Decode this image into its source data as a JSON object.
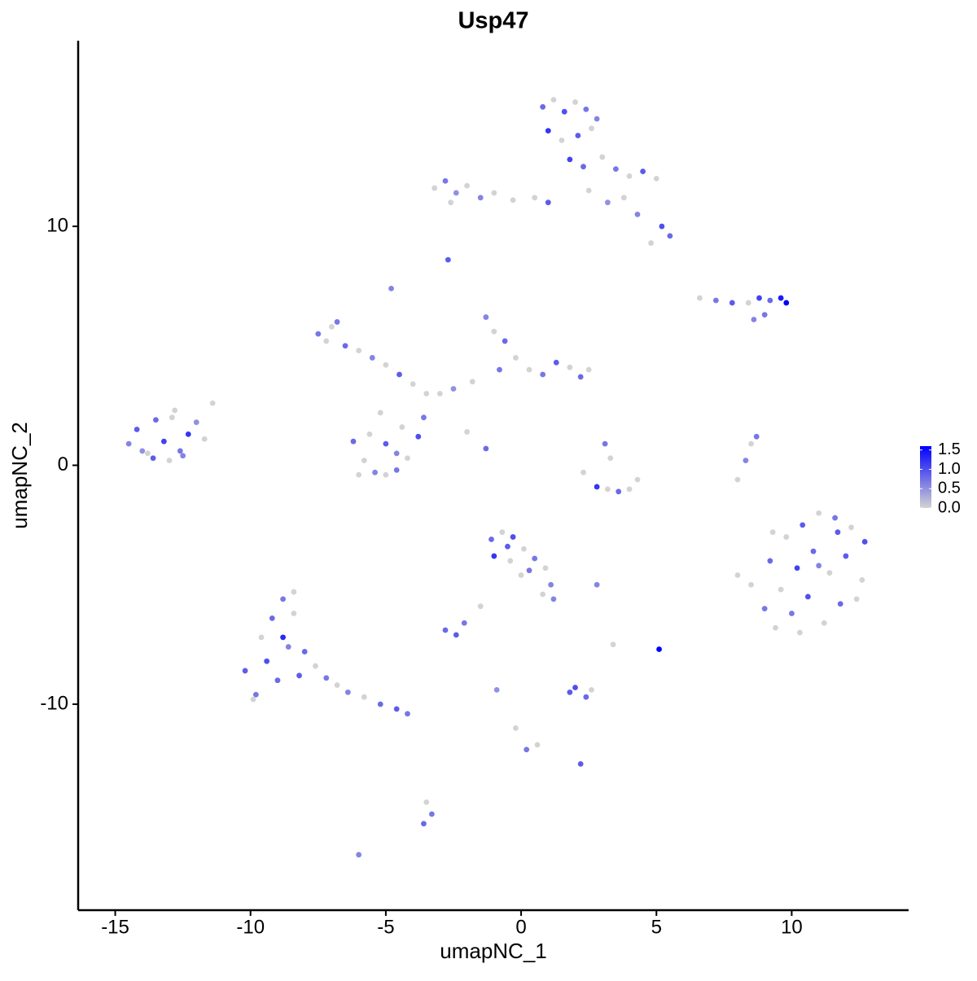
{
  "chart_data": {
    "type": "scatter",
    "title": "Usp47",
    "x_label": "umapNC_1",
    "y_label": "umapNC_2",
    "xlim": [
      -16.37,
      14.32
    ],
    "ylim": [
      -18.62,
      17.77
    ],
    "xticks": [
      -15,
      -10,
      -5,
      0,
      5,
      10
    ],
    "yticks": [
      -10,
      0,
      10
    ],
    "grid": false,
    "low_color": "#d3d3d3",
    "high_color": "#0000ff",
    "colorlim": [
      0,
      1.6
    ],
    "colorticks": [
      {
        "value": 0,
        "label": "0.0"
      },
      {
        "value": 0.5,
        "label": "0.5"
      },
      {
        "value": 1,
        "label": "1.0"
      },
      {
        "value": 1.5,
        "label": "1.5"
      }
    ],
    "legend_position": "right",
    "x": [
      -14.5,
      -14.2,
      -13.8,
      -13.5,
      -13.2,
      -12.9,
      -12.6,
      -12.3,
      -12.0,
      -11.7,
      -13.6,
      -13.0,
      -12.5,
      -14.0,
      -12.8,
      -11.4,
      0.8,
      1.2,
      1.6,
      2.0,
      2.4,
      2.8,
      1.0,
      1.5,
      2.1,
      2.6,
      1.8,
      2.3,
      3.0,
      3.5,
      4.0,
      4.5,
      5.0,
      3.8,
      4.3,
      5.2,
      5.5,
      2.5,
      3.2,
      4.8,
      -3.2,
      -2.8,
      -2.4,
      -2.0,
      -1.5,
      -1.0,
      -0.3,
      0.5,
      1.0,
      -2.6,
      -7.5,
      -7.0,
      -6.5,
      -6.0,
      -5.5,
      -5.0,
      -4.5,
      -4.0,
      -3.5,
      -7.2,
      -6.8,
      -4.8,
      -2.7,
      -6.2,
      -5.8,
      -5.4,
      -5.0,
      -4.6,
      -4.2,
      -3.8,
      -5.6,
      -5.0,
      -4.4,
      -5.2,
      -4.6,
      -6.0,
      -3.6,
      -1.3,
      -1.0,
      -0.6,
      -0.2,
      0.3,
      0.8,
      1.3,
      1.8,
      2.2,
      2.5,
      -1.8,
      -2.5,
      -3.0,
      -0.8,
      -2.0,
      -1.3,
      6.6,
      7.2,
      7.8,
      8.4,
      8.8,
      9.2,
      9.6,
      9.8,
      8.6,
      9.0,
      2.3,
      2.8,
      3.2,
      3.6,
      4.0,
      4.3,
      3.1,
      3.3,
      8.0,
      8.3,
      8.5,
      8.7,
      8.5,
      9.2,
      9.8,
      10.4,
      11.0,
      11.6,
      12.2,
      12.7,
      9.0,
      9.6,
      10.2,
      10.8,
      11.4,
      12.0,
      12.6,
      9.4,
      10.0,
      10.6,
      11.2,
      11.8,
      12.4,
      10.3,
      11.0,
      11.7,
      8.0,
      9.3,
      -10.2,
      -9.8,
      -9.4,
      -9.0,
      -8.6,
      -8.2,
      -9.6,
      -9.2,
      -8.8,
      -8.4,
      -8.8,
      -8.4,
      -8.0,
      -7.6,
      -7.2,
      -6.8,
      -6.4,
      -5.8,
      -5.2,
      -4.6,
      -4.2,
      -9.9,
      -1.1,
      -0.7,
      -0.3,
      0.1,
      0.5,
      0.9,
      1.1,
      -1.0,
      -0.4,
      0.3,
      0.8,
      1.2,
      -0.5,
      0.0,
      -1.5,
      -2.1,
      -2.8,
      -2.4,
      2.0,
      2.4,
      2.6,
      1.8,
      -3.5,
      -3.3,
      -3.6,
      -6.0,
      -0.9,
      -0.2,
      0.2,
      0.6,
      2.2,
      2.8,
      5.1,
      3.4
    ],
    "y": [
      0.9,
      1.5,
      0.5,
      1.9,
      1.0,
      2.0,
      0.6,
      1.3,
      1.8,
      1.1,
      0.3,
      0.2,
      0.4,
      0.6,
      2.3,
      2.6,
      15.0,
      15.3,
      14.8,
      15.2,
      14.9,
      14.5,
      14.0,
      13.6,
      13.8,
      14.1,
      12.8,
      12.5,
      12.9,
      12.4,
      12.1,
      12.3,
      12.0,
      11.2,
      10.5,
      10.0,
      9.6,
      11.5,
      11.0,
      9.3,
      11.6,
      11.9,
      11.4,
      11.7,
      11.2,
      11.4,
      11.1,
      11.2,
      11.0,
      11.0,
      5.5,
      5.8,
      5.0,
      4.8,
      4.5,
      4.2,
      3.8,
      3.4,
      3.0,
      5.2,
      6.0,
      7.4,
      8.6,
      1.0,
      0.2,
      -0.3,
      -0.4,
      -0.2,
      0.3,
      1.2,
      1.3,
      0.9,
      1.6,
      2.2,
      0.5,
      -0.4,
      2.0,
      6.2,
      5.6,
      5.2,
      4.5,
      4.0,
      3.8,
      4.3,
      4.1,
      3.7,
      4.0,
      3.5,
      3.2,
      3.0,
      4.0,
      1.4,
      0.7,
      7.0,
      6.9,
      6.8,
      6.8,
      7.0,
      6.9,
      7.0,
      6.8,
      6.1,
      6.3,
      -0.3,
      -0.9,
      -1.0,
      -1.1,
      -1.0,
      -0.6,
      0.9,
      0.3,
      -0.6,
      0.2,
      0.9,
      1.2,
      -5.0,
      -4.0,
      -3.0,
      -2.5,
      -2.0,
      -2.2,
      -2.6,
      -3.2,
      -6.0,
      -5.2,
      -4.3,
      -3.6,
      -4.5,
      -3.8,
      -4.8,
      -6.8,
      -6.2,
      -5.5,
      -6.6,
      -5.8,
      -5.6,
      -7.0,
      -4.2,
      -2.8,
      -4.6,
      -2.8,
      -8.6,
      -9.6,
      -8.2,
      -9.0,
      -7.6,
      -8.8,
      -7.2,
      -6.4,
      -5.6,
      -6.2,
      -7.2,
      -5.3,
      -7.8,
      -8.4,
      -8.9,
      -9.2,
      -9.5,
      -9.7,
      -10.0,
      -10.2,
      -10.4,
      -9.8,
      -3.1,
      -2.8,
      -3.0,
      -3.5,
      -3.9,
      -4.3,
      -5.0,
      -3.8,
      -4.0,
      -4.4,
      -5.4,
      -5.6,
      -3.4,
      -4.6,
      -5.9,
      -6.6,
      -6.9,
      -7.1,
      -9.3,
      -9.7,
      -9.4,
      -9.5,
      -14.1,
      -14.6,
      -15.0,
      -16.3,
      -9.4,
      -11.0,
      -11.9,
      -11.7,
      -12.5,
      -5.0,
      -7.7,
      -7.5
    ],
    "values": [
      0.6,
      0.9,
      0,
      0.8,
      1.1,
      0,
      0.7,
      1.2,
      0.5,
      0,
      0.9,
      0,
      0.6,
      0.5,
      0,
      0,
      0.8,
      0,
      1.0,
      0,
      0.7,
      0.6,
      1.2,
      0,
      0.9,
      0,
      1.1,
      0.8,
      0,
      0.7,
      0,
      0.9,
      0,
      0,
      0.6,
      1.0,
      0.8,
      0,
      0.5,
      0,
      0,
      0.7,
      0.5,
      0,
      0.6,
      0,
      0,
      0,
      0.9,
      0,
      0.7,
      0,
      0.8,
      0,
      0.6,
      0,
      0.9,
      0,
      0,
      0,
      0.7,
      0.6,
      0.9,
      0.8,
      0,
      0.6,
      0,
      0.7,
      0,
      1.0,
      0,
      0.9,
      0,
      0,
      0.6,
      0,
      0.7,
      0.6,
      0,
      0.8,
      0,
      0,
      0.7,
      0.9,
      0,
      0.8,
      0,
      0,
      0.5,
      0,
      0.7,
      0,
      0.8,
      0,
      0.7,
      0.9,
      0,
      1.1,
      0.8,
      1.4,
      1.6,
      0.6,
      0.7,
      0,
      1.2,
      0,
      0.8,
      0,
      0,
      0.7,
      0,
      0,
      0.6,
      0,
      0.7,
      0,
      0.8,
      0,
      0.9,
      0,
      0.7,
      0,
      1.0,
      0.7,
      0,
      1.1,
      0.8,
      0,
      0.9,
      0,
      0,
      0.7,
      1.0,
      0,
      0.8,
      0,
      0,
      0.6,
      0.9,
      0,
      0,
      0.9,
      0.7,
      1.0,
      0.8,
      0.6,
      0.9,
      0,
      0.8,
      0.7,
      0,
      1.3,
      0,
      0.8,
      0,
      0.7,
      0,
      0.6,
      0,
      0.8,
      0.9,
      0.7,
      0,
      0.8,
      0,
      1.0,
      0,
      0.7,
      0,
      0.6,
      1.2,
      0,
      0.7,
      0,
      0.6,
      0.9,
      0,
      0,
      0.7,
      0.8,
      0.9,
      1.0,
      0.8,
      0,
      0.9,
      0,
      0.7,
      0.8,
      0.6,
      0.5,
      0,
      0.7,
      0,
      0.9,
      0.6,
      1.6,
      0
    ]
  }
}
